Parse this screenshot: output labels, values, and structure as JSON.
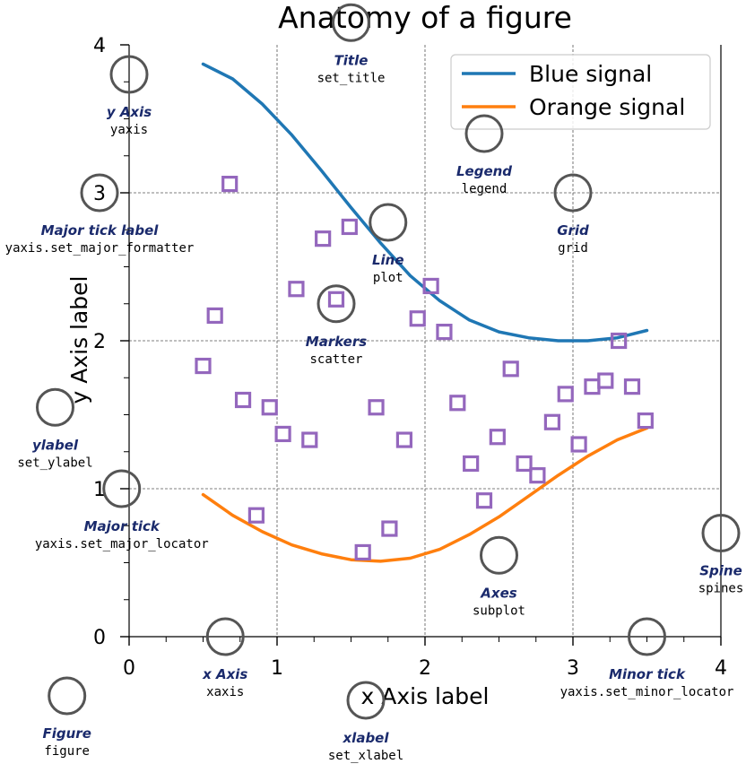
{
  "chart_data": {
    "type": "line",
    "title": "Anatomy of a figure",
    "xlabel": "x Axis label",
    "ylabel": "y Axis label",
    "xlim": [
      0,
      4
    ],
    "ylim": [
      0,
      4
    ],
    "grid": true,
    "legend_placement": "top-right",
    "x_ticks": [
      "0",
      "1",
      "2",
      "3",
      "4"
    ],
    "y_ticks": [
      "0",
      "1",
      "2",
      "3",
      "4"
    ],
    "series": [
      {
        "name": "Blue signal",
        "kind": "line",
        "color": "#1f77b4",
        "x": [
          0.5,
          0.7,
          0.9,
          1.1,
          1.3,
          1.5,
          1.7,
          1.9,
          2.1,
          2.3,
          2.5,
          2.7,
          2.9,
          3.1,
          3.3,
          3.5
        ],
        "y": [
          3.87,
          3.77,
          3.6,
          3.39,
          3.15,
          2.9,
          2.66,
          2.44,
          2.27,
          2.14,
          2.06,
          2.02,
          2.0,
          2.0,
          2.02,
          2.07
        ]
      },
      {
        "name": "Orange signal",
        "kind": "line",
        "color": "#ff7f0e",
        "x": [
          0.5,
          0.7,
          0.9,
          1.1,
          1.3,
          1.5,
          1.7,
          1.9,
          2.1,
          2.3,
          2.5,
          2.7,
          2.9,
          3.1,
          3.3,
          3.5
        ],
        "y": [
          0.96,
          0.82,
          0.71,
          0.62,
          0.56,
          0.52,
          0.51,
          0.53,
          0.59,
          0.69,
          0.81,
          0.95,
          1.09,
          1.22,
          1.33,
          1.41
        ]
      },
      {
        "kind": "scatter",
        "color": "#9467bd",
        "x": [
          0.5,
          0.58,
          0.68,
          0.77,
          0.86,
          0.95,
          1.04,
          1.13,
          1.22,
          1.31,
          1.4,
          1.49,
          1.58,
          1.67,
          1.76,
          1.86,
          1.95,
          2.04,
          2.13,
          2.22,
          2.31,
          2.4,
          2.49,
          2.58,
          2.67,
          2.76,
          2.86,
          2.95,
          3.04,
          3.13,
          3.22,
          3.31,
          3.4,
          3.49
        ],
        "y": [
          1.83,
          2.17,
          3.06,
          1.6,
          0.82,
          1.55,
          1.37,
          2.35,
          1.33,
          2.69,
          2.28,
          2.77,
          0.57,
          1.55,
          0.73,
          1.33,
          2.15,
          2.37,
          2.06,
          1.58,
          1.17,
          0.92,
          1.35,
          1.81,
          1.17,
          1.09,
          1.45,
          1.64,
          1.3,
          1.69,
          1.73,
          2.0,
          1.69,
          1.46
        ]
      }
    ]
  },
  "annotations": [
    {
      "key": "title",
      "name": "Title",
      "code": "set_title",
      "cx": 1.5,
      "cy": 4.15
    },
    {
      "key": "y-axis",
      "name": "y Axis",
      "code": "yaxis",
      "cx": 0.0,
      "cy": 3.8
    },
    {
      "key": "legend",
      "name": "Legend",
      "code": "legend",
      "cx": 2.4,
      "cy": 3.4
    },
    {
      "key": "major-tick-label",
      "name": "Major tick label",
      "code": "yaxis.set_major_formatter",
      "cx": -0.2,
      "cy": 3.0
    },
    {
      "key": "grid",
      "name": "Grid",
      "code": "grid",
      "cx": 3.0,
      "cy": 3.0
    },
    {
      "key": "line",
      "name": "Line",
      "code": "plot",
      "cx": 1.75,
      "cy": 2.8
    },
    {
      "key": "markers",
      "name": "Markers",
      "code": "scatter",
      "cx": 1.4,
      "cy": 2.25
    },
    {
      "key": "ylabel",
      "name": "ylabel",
      "code": "set_ylabel",
      "cx": -0.5,
      "cy": 1.55
    },
    {
      "key": "major-tick",
      "name": "Major tick",
      "code": "yaxis.set_major_locator",
      "cx": -0.05,
      "cy": 1.0
    },
    {
      "key": "axes",
      "name": "Axes",
      "code": "subplot",
      "cx": 2.5,
      "cy": 0.55
    },
    {
      "key": "spine",
      "name": "Spine",
      "code": "spines",
      "cx": 4.0,
      "cy": 0.7
    },
    {
      "key": "x-axis",
      "name": "x Axis",
      "code": "xaxis",
      "cx": 0.65,
      "cy": 0.0
    },
    {
      "key": "minor-tick",
      "name": "Minor tick",
      "code": "yaxis.set_minor_locator",
      "cx": 3.5,
      "cy": 0.0
    },
    {
      "key": "xlabel",
      "name": "xlabel",
      "code": "set_xlabel",
      "cx": 1.6,
      "cy": -0.43
    },
    {
      "key": "figure",
      "name": "Figure",
      "code": "figure",
      "cx": -0.42,
      "cy": -0.4
    }
  ]
}
